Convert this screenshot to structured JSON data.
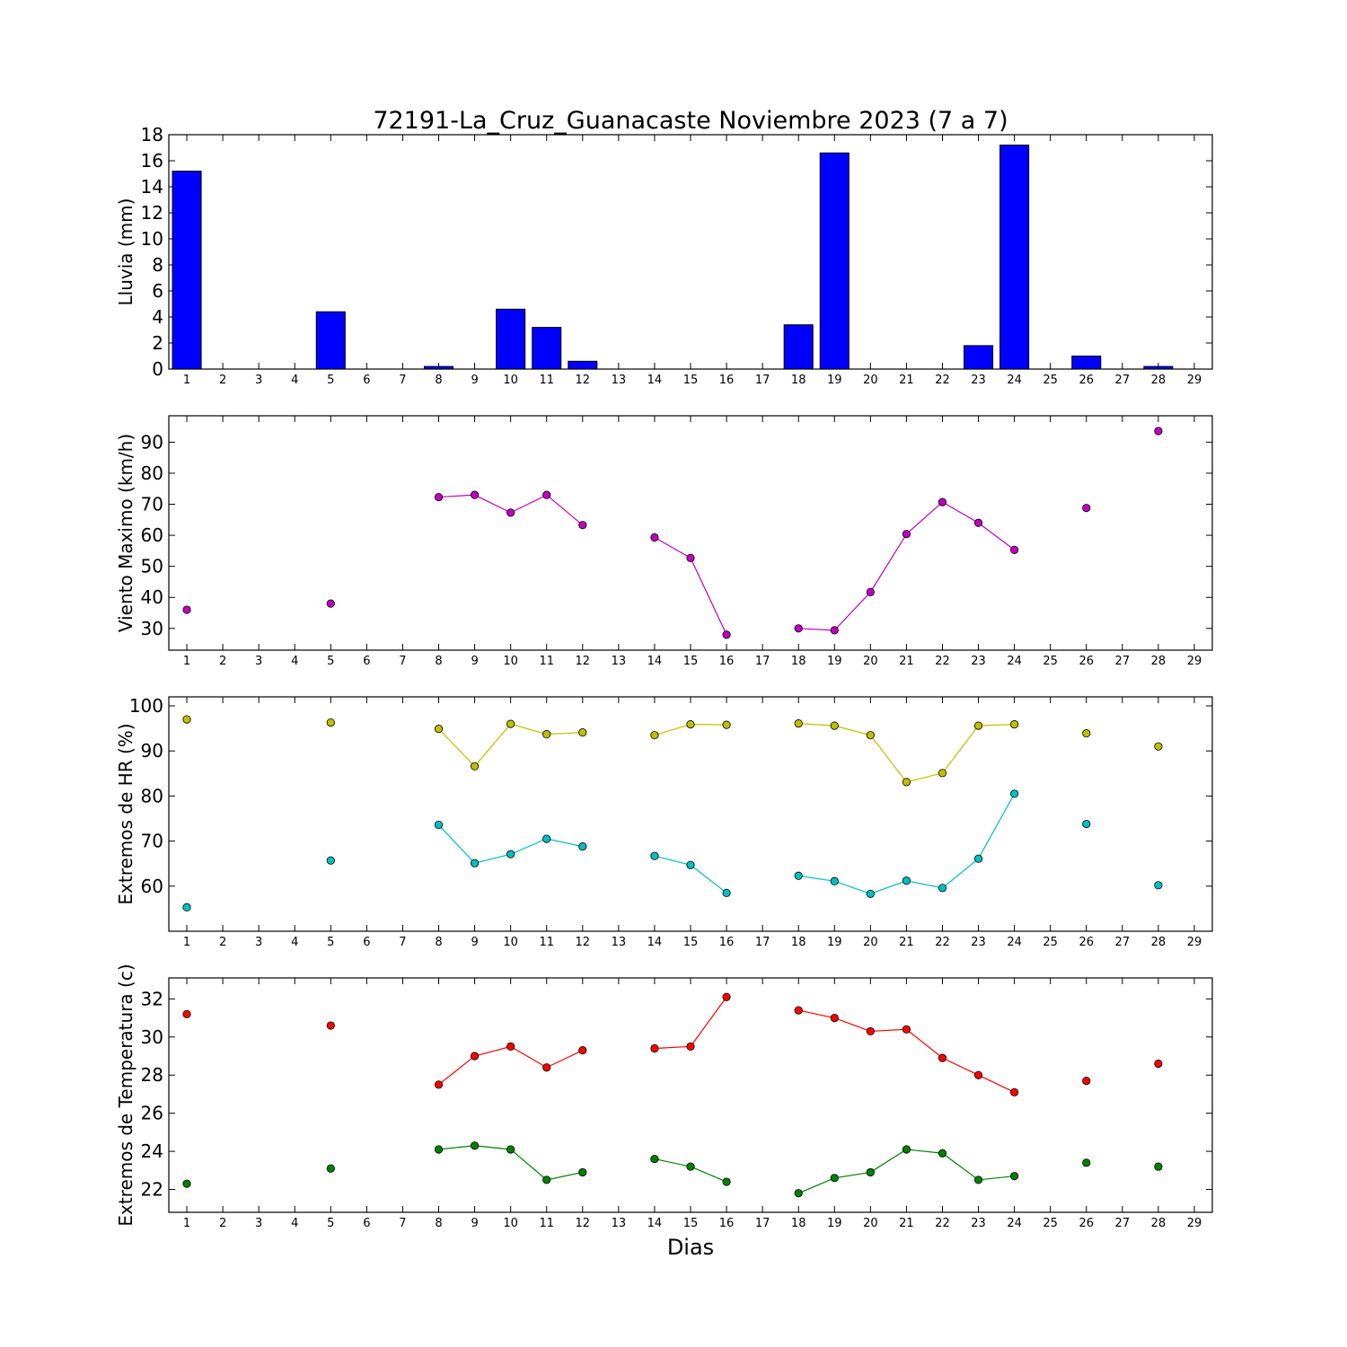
{
  "title": "72191-La_Cruz_Guanacaste Noviembre 2023  (7 a 7)",
  "xlabel": "Dias",
  "x_ticks": [
    1,
    2,
    3,
    4,
    5,
    6,
    7,
    8,
    9,
    10,
    11,
    12,
    13,
    14,
    15,
    16,
    17,
    18,
    19,
    20,
    21,
    22,
    23,
    24,
    25,
    26,
    27,
    28,
    29
  ],
  "chart_data": [
    {
      "type": "bar",
      "ylabel": "Lluvia (mm)",
      "ylim": [
        0,
        18
      ],
      "yticks": [
        0,
        2,
        4,
        6,
        8,
        10,
        12,
        14,
        16,
        18
      ],
      "xlim": [
        0.5,
        29.5
      ],
      "color": "#0000ff",
      "x": [
        1,
        2,
        3,
        4,
        5,
        6,
        7,
        8,
        9,
        10,
        11,
        12,
        13,
        14,
        15,
        16,
        17,
        18,
        19,
        20,
        21,
        22,
        23,
        24,
        25,
        26,
        27,
        28,
        29
      ],
      "values": [
        15.2,
        0,
        0,
        0,
        4.4,
        0,
        0,
        0.2,
        0,
        4.6,
        3.2,
        0.6,
        0,
        0,
        0,
        0,
        0,
        3.4,
        16.6,
        0,
        0,
        0,
        1.8,
        17.2,
        0,
        1.0,
        0,
        0.2,
        0
      ]
    },
    {
      "type": "line",
      "ylabel": "Viento Maximo (km/h)",
      "ylim": [
        23,
        98.5
      ],
      "yticks": [
        30,
        40,
        50,
        60,
        70,
        80,
        90
      ],
      "xlim": [
        0.5,
        29.5
      ],
      "series": [
        {
          "color": "#bf00bf",
          "x": [
            1,
            5,
            8,
            9,
            10,
            11,
            12,
            14,
            15,
            16,
            18,
            19,
            20,
            21,
            22,
            23,
            24,
            26,
            28
          ],
          "values": [
            36,
            38,
            72.3,
            73,
            67.3,
            73,
            63.3,
            59.3,
            52.7,
            28,
            30,
            29.4,
            41.7,
            60.4,
            70.7,
            64,
            55.3,
            68.8,
            93.6
          ]
        }
      ]
    },
    {
      "type": "line",
      "ylabel": "Extremos de HR (%)",
      "ylim": [
        50,
        102
      ],
      "yticks": [
        60,
        70,
        80,
        90,
        100
      ],
      "xlim": [
        0.5,
        29.5
      ],
      "series": [
        {
          "color": "#bfbf00",
          "x": [
            1,
            5,
            8,
            9,
            10,
            11,
            12,
            14,
            15,
            16,
            18,
            19,
            20,
            21,
            22,
            23,
            24,
            26,
            28
          ],
          "values": [
            97,
            96.3,
            94.9,
            86.6,
            96,
            93.7,
            94.1,
            93.5,
            95.9,
            95.8,
            96.1,
            95.6,
            93.5,
            83.1,
            85.1,
            95.6,
            95.9,
            93.9,
            91
          ]
        },
        {
          "color": "#00bfbf",
          "x": [
            1,
            5,
            8,
            9,
            10,
            11,
            12,
            14,
            15,
            16,
            18,
            19,
            20,
            21,
            22,
            23,
            24,
            26,
            28
          ],
          "values": [
            55.3,
            65.7,
            73.6,
            65.1,
            67.1,
            70.5,
            68.8,
            66.7,
            64.7,
            58.5,
            62.3,
            61.1,
            58.3,
            61.2,
            59.6,
            66.1,
            80.5,
            73.8,
            60.2
          ]
        }
      ]
    },
    {
      "type": "line",
      "ylabel": "Extremos de Temperatura (c)",
      "ylim": [
        20.8,
        33.1
      ],
      "yticks": [
        22,
        24,
        26,
        28,
        30,
        32
      ],
      "xlim": [
        0.5,
        29.5
      ],
      "series": [
        {
          "color": "#ff0000",
          "x": [
            1,
            5,
            8,
            9,
            10,
            11,
            12,
            14,
            15,
            16,
            18,
            19,
            20,
            21,
            22,
            23,
            24,
            26,
            28
          ],
          "values": [
            31.2,
            30.6,
            27.5,
            29,
            29.5,
            28.4,
            29.3,
            29.4,
            29.5,
            32.1,
            31.4,
            31,
            30.3,
            30.4,
            28.9,
            28,
            27.1,
            27.7,
            28.6
          ]
        },
        {
          "color": "#008000",
          "x": [
            1,
            5,
            8,
            9,
            10,
            11,
            12,
            14,
            15,
            16,
            18,
            19,
            20,
            21,
            22,
            23,
            24,
            26,
            28
          ],
          "values": [
            22.3,
            23.1,
            24.1,
            24.3,
            24.1,
            22.5,
            22.9,
            23.6,
            23.2,
            22.4,
            21.8,
            22.6,
            22.9,
            24.1,
            23.9,
            22.5,
            22.7,
            23.4,
            23.2
          ]
        }
      ]
    }
  ]
}
